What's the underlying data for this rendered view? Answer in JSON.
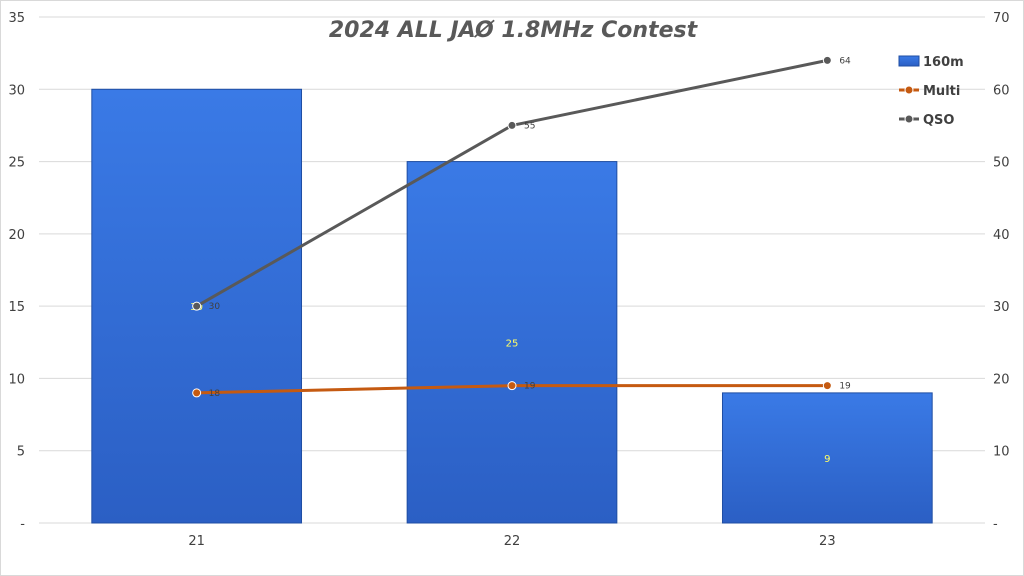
{
  "chart_data": {
    "type": "bar",
    "title": "2024 ALL JAØ 1.8MHz Contest",
    "categories": [
      "21",
      "22",
      "23"
    ],
    "series": [
      {
        "name": "160m",
        "type": "bar",
        "axis": "left",
        "values": [
          30,
          25,
          9
        ],
        "color": "#3370d8"
      },
      {
        "name": "Multi",
        "type": "line",
        "axis": "right",
        "values": [
          18,
          19,
          19
        ],
        "color": "#c55a11"
      },
      {
        "name": "QSO",
        "type": "line",
        "axis": "right",
        "values": [
          30,
          55,
          64
        ],
        "color": "#595959"
      }
    ],
    "y_left": {
      "min": 0,
      "max": 35,
      "step": 5,
      "ticks": [
        "-",
        "5",
        "10",
        "15",
        "20",
        "25",
        "30",
        "35"
      ]
    },
    "y_right": {
      "min": 0,
      "max": 70,
      "step": 10,
      "ticks": [
        "-",
        "10",
        "20",
        "30",
        "40",
        "50",
        "60",
        "70"
      ]
    },
    "grid": true,
    "legend_position": "top-right"
  }
}
